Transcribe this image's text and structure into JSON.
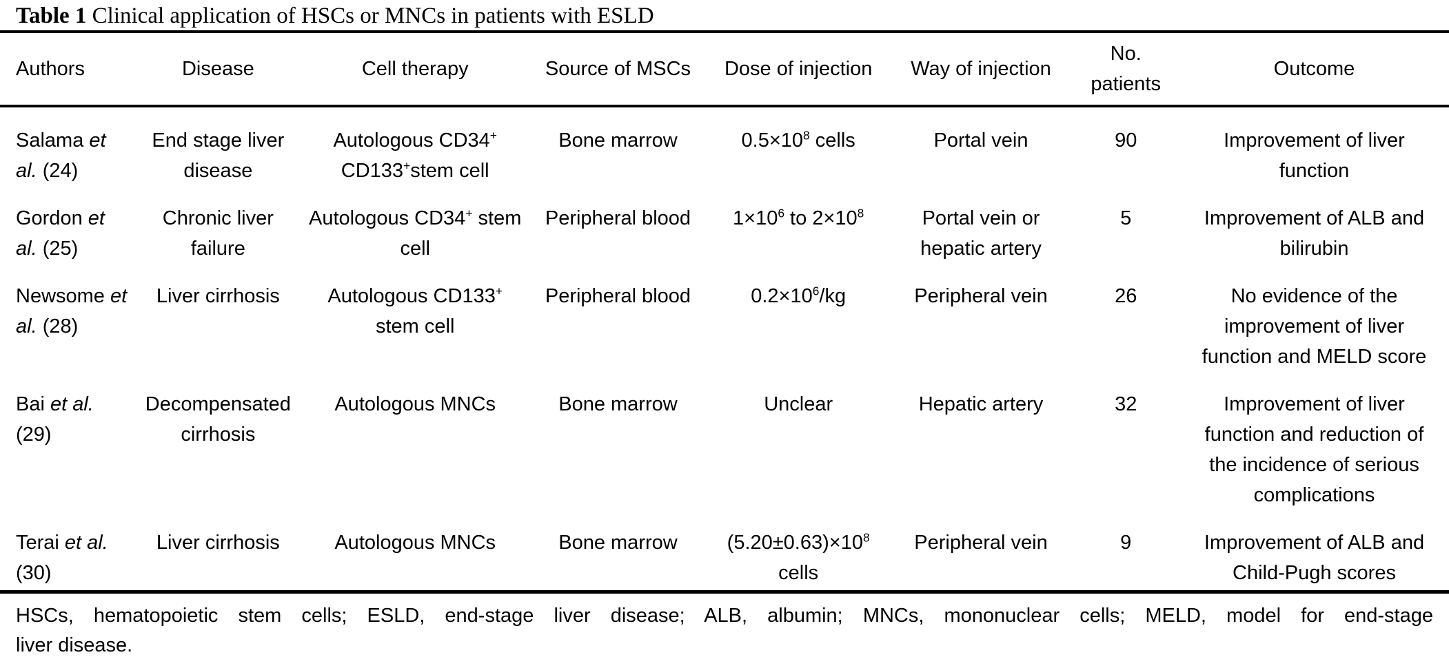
{
  "page": {
    "background_color": "#ffffff",
    "text_color": "#000000",
    "rule_color": "#000000"
  },
  "caption": {
    "label": "Table 1",
    "text": "Clinical application of HSCs or MNCs in patients with ESLD"
  },
  "table": {
    "columns": [
      {
        "id": "authors",
        "label": "Authors"
      },
      {
        "id": "disease",
        "label": "Disease"
      },
      {
        "id": "therapy",
        "label": "Cell therapy"
      },
      {
        "id": "source",
        "label": "Source of MSCs"
      },
      {
        "id": "dose",
        "label": "Dose of injection"
      },
      {
        "id": "way",
        "label": "Way of injection"
      },
      {
        "id": "patients",
        "label": "No. patients"
      },
      {
        "id": "outcome",
        "label": "Outcome"
      }
    ],
    "rows": [
      {
        "authors": "Salama *et al.* (24)",
        "disease": "End stage liver disease",
        "therapy": "Autologous CD34^{+} CD133^{+}stem cell",
        "source": "Bone marrow",
        "dose": "0.5×10^{8} cells",
        "way": "Portal vein",
        "patients": "90",
        "outcome": "Improvement of liver function"
      },
      {
        "authors": "Gordon *et al.* (25)",
        "disease": "Chronic liver failure",
        "therapy": "Autologous CD34^{+} stem cell",
        "source": "Peripheral blood",
        "dose": "1×10^{6} to 2×10^{8}",
        "way": "Portal vein or hepatic artery",
        "patients": "5",
        "outcome": "Improvement of ALB and bilirubin"
      },
      {
        "authors": "Newsome *et al.* (28)",
        "disease": "Liver cirrhosis",
        "therapy": "Autologous CD133^{+} stem cell",
        "source": "Peripheral blood",
        "dose": "0.2×10^{6}/kg",
        "way": "Peripheral vein",
        "patients": "26",
        "outcome": "No evidence of the improvement of liver function and MELD score"
      },
      {
        "authors": "Bai *et al.* (29)",
        "disease": "Decompensated cirrhosis",
        "therapy": "Autologous MNCs",
        "source": "Bone marrow",
        "dose": "Unclear",
        "way": "Hepatic artery",
        "patients": "32",
        "outcome": "Improvement of liver function and reduction of the incidence of serious complications"
      },
      {
        "authors": "Terai *et al.* (30)",
        "disease": "Liver cirrhosis",
        "therapy": "Autologous MNCs",
        "source": "Bone marrow",
        "dose": "(5.20±0.63)×10^{8} cells",
        "way": "Peripheral vein",
        "patients": "9",
        "outcome": "Improvement of ALB and Child-Pugh scores"
      }
    ]
  },
  "footnote": {
    "line1": "HSCs, hematopoietic stem cells; ESLD, end-stage liver disease; ALB, albumin; MNCs, mononuclear cells; MELD, model for end-stage",
    "line2": "liver disease."
  }
}
